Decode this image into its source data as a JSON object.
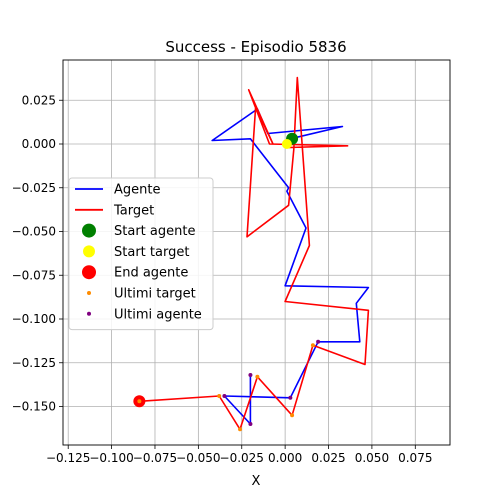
{
  "chart_data": {
    "type": "line",
    "title": "Success - Episodio 5836",
    "xlabel": "X",
    "ylabel": "",
    "xlim": [
      -0.128,
      0.095
    ],
    "ylim": [
      -0.172,
      0.048
    ],
    "xticks": [
      -0.125,
      -0.1,
      -0.075,
      -0.05,
      -0.025,
      0.0,
      0.025,
      0.05,
      0.075
    ],
    "xtick_labels": [
      "−0.125",
      "−0.100",
      "−0.075",
      "−0.050",
      "−0.025",
      "0.000",
      "0.025",
      "0.050",
      "0.075"
    ],
    "yticks": [
      0.025,
      0.0,
      -0.025,
      -0.05,
      -0.075,
      -0.1,
      -0.125,
      -0.15
    ],
    "ytick_labels": [
      "0.025",
      "0.000",
      "−0.025",
      "−0.050",
      "−0.075",
      "−0.100",
      "−0.125",
      "−0.150"
    ],
    "grid": true,
    "legend_position": "center-left",
    "series": [
      {
        "name": "Agente",
        "kind": "line",
        "color": "#0000ff",
        "x": [
          0.003,
          0.033,
          -0.01,
          -0.016,
          -0.042,
          -0.02,
          0.002,
          0.001,
          0.012,
          0.0,
          0.048,
          0.041,
          0.043,
          0.019,
          0.003,
          -0.035,
          -0.02,
          -0.02
        ],
        "y": [
          0.003,
          0.01,
          0.006,
          0.02,
          0.002,
          0.003,
          -0.025,
          -0.027,
          -0.048,
          -0.081,
          -0.082,
          -0.091,
          -0.113,
          -0.113,
          -0.145,
          -0.144,
          -0.16,
          -0.132
        ]
      },
      {
        "name": "Target",
        "kind": "line",
        "color": "#ff0000",
        "x": [
          0.002,
          0.036,
          -0.009,
          -0.021,
          -0.007,
          -0.017,
          -0.022,
          0.002,
          0.005,
          0.007,
          0.014,
          0.0,
          0.048,
          0.046,
          0.016,
          0.004,
          -0.016,
          -0.026,
          -0.038,
          -0.084
        ],
        "y": [
          -0.002,
          -0.001,
          0.0,
          0.031,
          0.0,
          0.021,
          -0.053,
          -0.035,
          -0.003,
          0.038,
          -0.058,
          -0.09,
          -0.095,
          -0.126,
          -0.115,
          -0.155,
          -0.133,
          -0.163,
          -0.144,
          -0.147
        ]
      },
      {
        "name": "Start agente",
        "kind": "marker",
        "color": "#008000",
        "size": 12,
        "x": [
          0.004
        ],
        "y": [
          0.003
        ]
      },
      {
        "name": "Start target",
        "kind": "marker",
        "color": "#ffff00",
        "size": 10,
        "x": [
          0.001
        ],
        "y": [
          0.0
        ]
      },
      {
        "name": "End agente",
        "kind": "marker",
        "color": "#ff0000",
        "size": 12,
        "x": [
          -0.084
        ],
        "y": [
          -0.147
        ]
      },
      {
        "name": "Ultimi target",
        "kind": "scatter",
        "color": "#ff8c00",
        "size": 4,
        "x": [
          -0.084,
          -0.038,
          -0.026,
          -0.016,
          0.004,
          0.016
        ],
        "y": [
          -0.147,
          -0.144,
          -0.163,
          -0.133,
          -0.155,
          -0.115
        ]
      },
      {
        "name": "Ultimi agente",
        "kind": "scatter",
        "color": "#800080",
        "size": 4,
        "x": [
          -0.035,
          -0.02,
          -0.02,
          0.003,
          0.019
        ],
        "y": [
          -0.144,
          -0.16,
          -0.132,
          -0.145,
          -0.113
        ]
      }
    ]
  }
}
